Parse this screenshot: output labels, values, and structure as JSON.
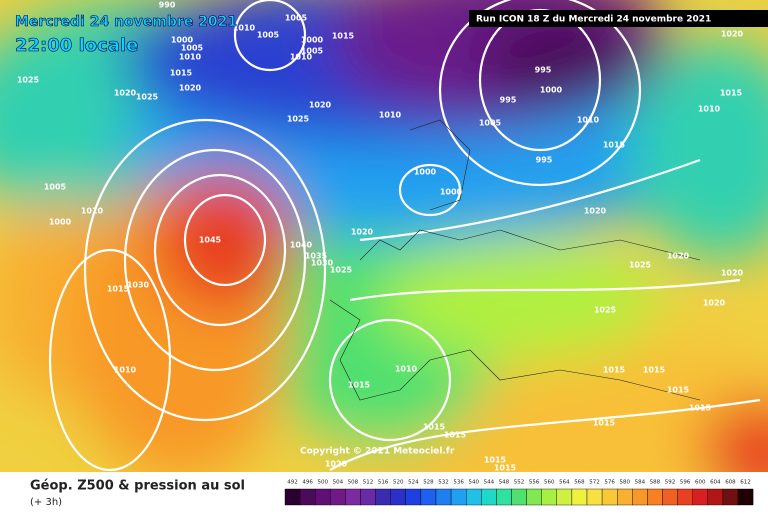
{
  "header": {
    "date": "Mercredi 24 novembre 2021",
    "time": "22:00 locale",
    "run": "Run ICON 18 Z du Mercredi 24 novembre 2021"
  },
  "map": {
    "isobar_labels": [
      "990",
      "1010",
      "1005",
      "1000",
      "1005",
      "1010",
      "1015",
      "1020",
      "1025",
      "1020",
      "1025",
      "1005",
      "1000",
      "1005",
      "1010",
      "1015",
      "1020",
      "1025",
      "1010",
      "995",
      "1000",
      "995",
      "1005",
      "995",
      "1010",
      "1015",
      "1010",
      "1015",
      "1020",
      "1000",
      "1000",
      "1020",
      "1020",
      "1005",
      "1010",
      "1000",
      "1045",
      "1040",
      "1035",
      "1030",
      "1025",
      "1030",
      "1015",
      "1010",
      "1025",
      "1025",
      "1020",
      "1020",
      "1020",
      "1015",
      "1010",
      "1015",
      "1015",
      "1015",
      "1015",
      "1015",
      "1015",
      "1015",
      "1015",
      "1015",
      "1020"
    ],
    "copyright": "Copyright © 2021 Meteociel.fr"
  },
  "footer": {
    "title": "Géop. Z500 & pression au sol",
    "subtitle": "(+ 3h)"
  },
  "scale": {
    "labels": [
      492,
      496,
      500,
      504,
      508,
      512,
      516,
      520,
      524,
      528,
      532,
      536,
      540,
      544,
      548,
      552,
      556,
      560,
      564,
      568,
      572,
      576,
      580,
      584,
      588,
      592,
      596,
      600,
      604,
      608,
      612
    ],
    "colors": [
      "#2b0030",
      "#4b0a5a",
      "#5e1075",
      "#701a8a",
      "#7d2aa0",
      "#6a2aa8",
      "#3b2bb0",
      "#2a30c8",
      "#1e40e0",
      "#1e60f0",
      "#1e80f0",
      "#20a0f0",
      "#20c0e8",
      "#20d8c8",
      "#30e0a0",
      "#50e070",
      "#80e850",
      "#a8f040",
      "#d0f040",
      "#f0f040",
      "#f8e040",
      "#f8c838",
      "#f8b030",
      "#f89828",
      "#f88020",
      "#f06020",
      "#e84020",
      "#d82020",
      "#b01818",
      "#701010",
      "#200000"
    ]
  }
}
